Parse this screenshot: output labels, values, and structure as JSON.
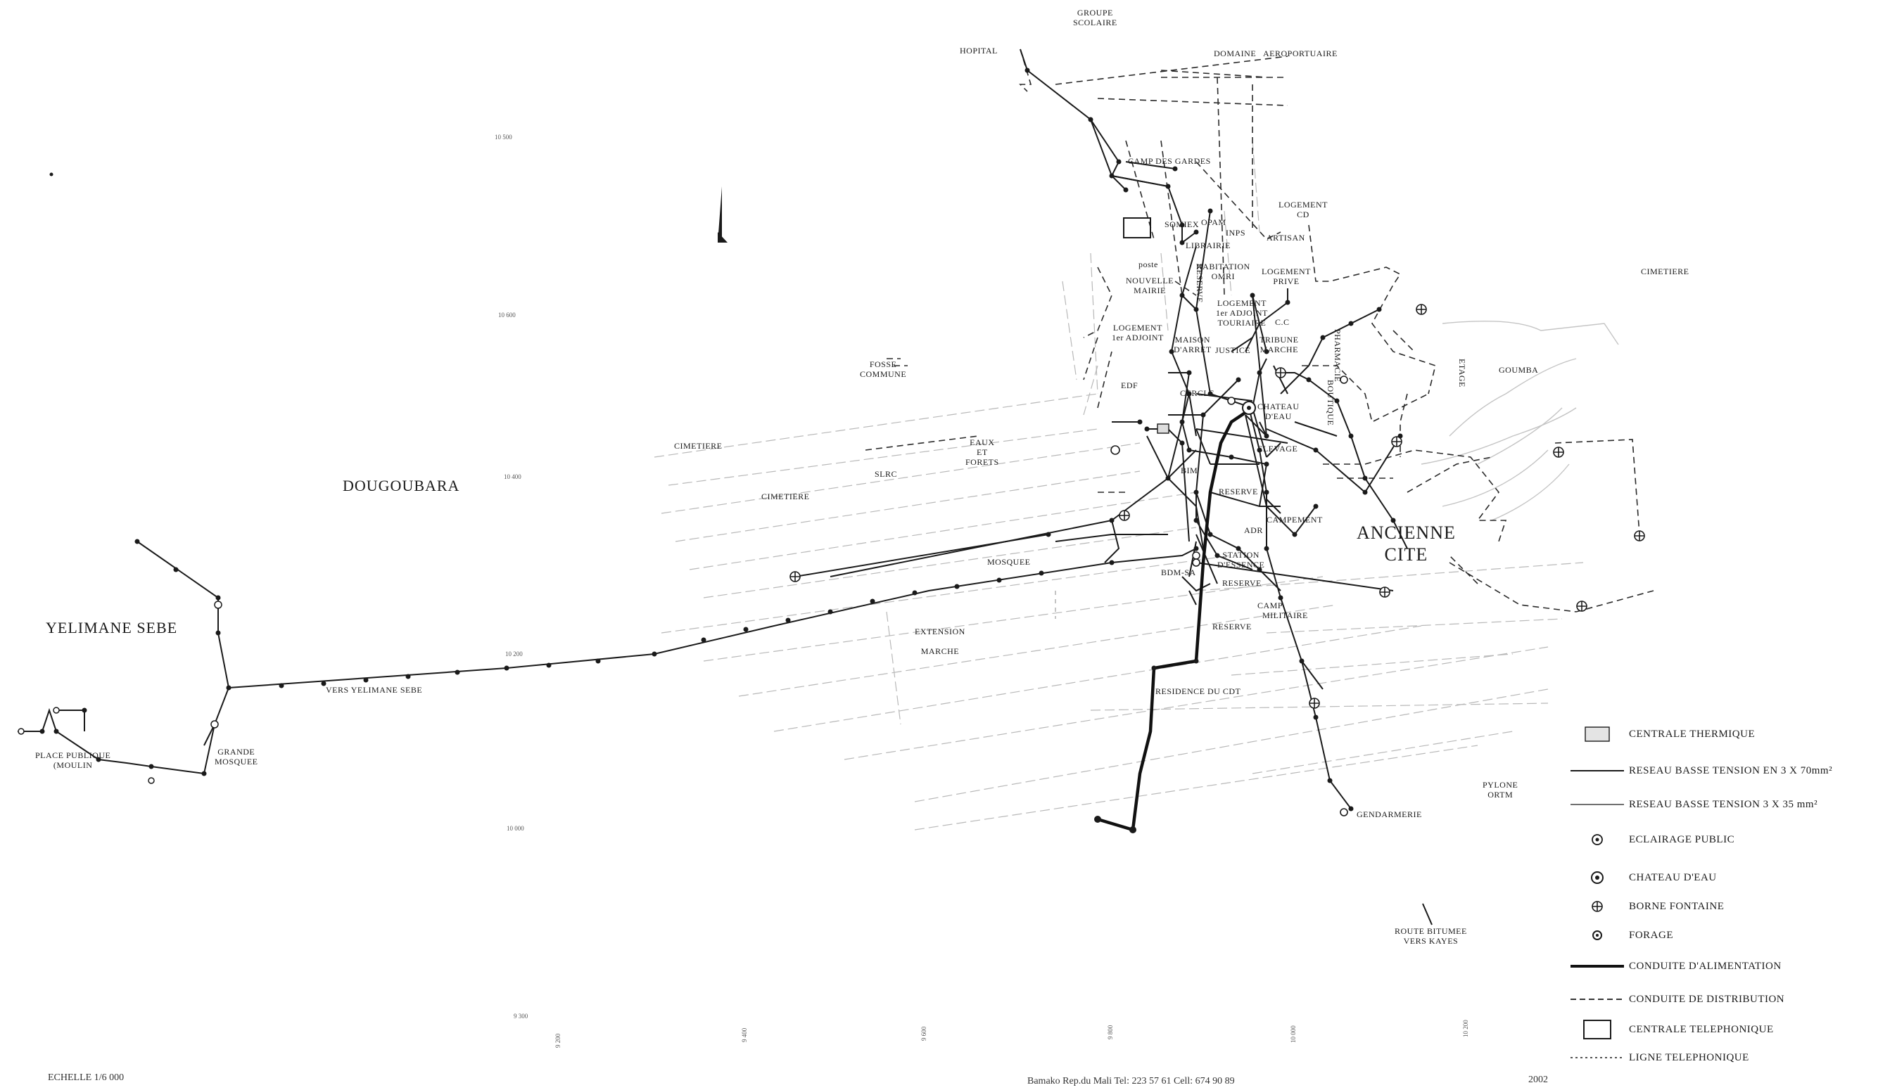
{
  "places": {
    "groupe_scolaire": "GROUPE\nSCOLAIRE",
    "hopital": "HOPITAL",
    "domaine_aeroportuaire": "DOMAINE   AEROPORTUAIRE",
    "camp_des_gardes": "CAMP DES GARDES",
    "logement_cd": "LOGEMENT\nCD",
    "somiex": "SOMIEX",
    "opam": "OPAM",
    "inps": "INPS",
    "artisan": "ARTISAN",
    "librairie": "LIBRAIRIE",
    "poste": "poste",
    "habitation_omri": "HABITATION\nOMRI",
    "logement_prive": "LOGEMENT\nPRIVE",
    "nouvelle_mairie": "NOUVELLE\nMAIRIE",
    "reserve_vert": "RESERVE",
    "logement_1er_adjoint_1": "LOGEMENT\n1er ADJOINT\nTOURIAIRE",
    "cc": "C.C",
    "logement_1er_adjoint_2": "LOGEMENT\n1er ADJOINT",
    "maison_darret": "MAISON\nD'ARRET",
    "justice": "JUSTICE",
    "tribune_marche": "TRIBUNE\nMARCHE",
    "pharmacie": "PHARMACIE",
    "boutique": "BOUTIQUE",
    "fosse_commune": "FOSSE\nCOMMUNE",
    "edf": "EDF",
    "cercle": "CERCLE",
    "chateau_deau": "CHATEAU\nD'EAU",
    "cimetiere_1": "CIMETIERE",
    "cimetiere_2": "CIMETIERE",
    "cimetiere_3": "CIMETIERE",
    "eaux_forets": "EAUX\nET\nFORETS",
    "slrc": "SLRC",
    "elevage": "ELEVAGE",
    "bim": "BIM",
    "reserve_1": "RESERVE",
    "campement": "CAMPEMENT",
    "adr": "ADR",
    "station_essence": "STATION\nD'ESSENCE",
    "bdm_sa": "BDM-SA",
    "reserve_2": "RESERVE",
    "mosquee": "MOSQUEE",
    "camp_militaire": "CAMP\n  MILITAIRE",
    "reserve_3": "RESERVE",
    "extension_marche": "EXTENSION\n\nMARCHE",
    "residence_cdt": "RESIDENCE DU CDT",
    "gendarmerie": "GENDARMERIE",
    "pylone_ortm": "PYLONE\nORTM",
    "route_bitumee": "ROUTE BITUMEE\nVERS KAYES",
    "dougoubara": "DOUGOUBARA",
    "yelimane_sebe": "YELIMANE SEBE",
    "vers_yelimane": "VERS YELIMANE SEBE",
    "grande_mosquee": "GRANDE\nMOSQUEE",
    "place_publique": "PLACE PUBLIQUE\n(MOULIN",
    "ancienne_cite": "ANCIENNE\nCITE",
    "goumba": "GOUMBA",
    "etage": "ETAGE"
  },
  "grid": {
    "n10500": "10 500",
    "n10600": "10 600",
    "n10400": "10 400",
    "n10200": "10 200",
    "n10000": "10 000",
    "e9300": "9 300",
    "e9200": "9 200",
    "e9400": "9 400",
    "e9600": "9 600",
    "e9800": "9 800",
    "e10000": "10 000",
    "e10200": "10 200"
  },
  "legend": {
    "items": [
      {
        "symbol": "centrale-thermique-icon",
        "label": "CENTRALE THERMIQUE"
      },
      {
        "symbol": "line-70-icon",
        "label": "RESEAU BASSE TENSION EN  3 X 70mm²"
      },
      {
        "symbol": "line-35-icon",
        "label": "RESEAU BASSE TENSION 3 X 35 mm²"
      },
      {
        "symbol": "eclairage-icon",
        "label": "ECLAIRAGE PUBLIC"
      },
      {
        "symbol": "chateau-icon",
        "label": "CHATEAU D'EAU"
      },
      {
        "symbol": "borne-icon",
        "label": "BORNE FONTAINE"
      },
      {
        "symbol": "forage-icon",
        "label": "FORAGE"
      },
      {
        "symbol": "alimentation-icon",
        "label": "CONDUITE D'ALIMENTATION"
      },
      {
        "symbol": "distribution-icon",
        "label": "CONDUITE DE DISTRIBUTION"
      },
      {
        "symbol": "telephonique-icon",
        "label": "CENTRALE TELEPHONIQUE"
      },
      {
        "symbol": "ligne-tel-icon",
        "label": "LIGNE TELEPHONIQUE"
      }
    ]
  },
  "footer": {
    "scale": "ECHELLE  1/6 000",
    "credits": "Bamako Rep.du Mali   Tel: 223  57  61    Cell: 674  90  89",
    "year": "2002"
  },
  "colors": {
    "ink": "#1a1a1a",
    "faint": "#9a9a9a"
  }
}
